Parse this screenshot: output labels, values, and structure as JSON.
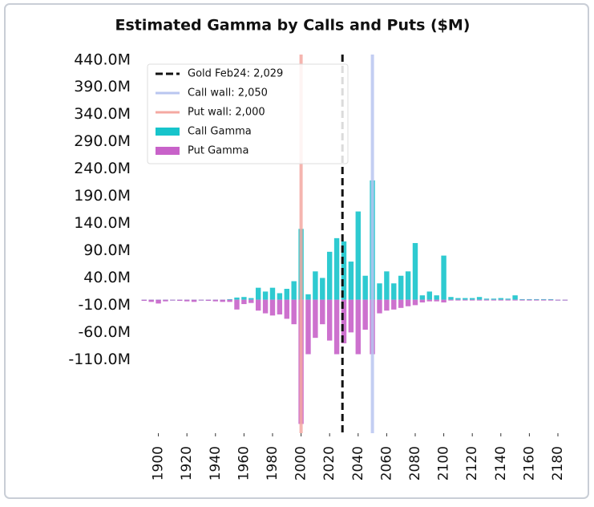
{
  "chart_data": {
    "type": "bar",
    "title": "Estimated Gamma by Calls and Puts ($M)",
    "x": [
      1890,
      1895,
      1900,
      1905,
      1910,
      1915,
      1920,
      1925,
      1930,
      1935,
      1940,
      1945,
      1950,
      1955,
      1960,
      1965,
      1970,
      1975,
      1980,
      1985,
      1990,
      1995,
      2000,
      2005,
      2010,
      2015,
      2020,
      2025,
      2030,
      2035,
      2040,
      2045,
      2050,
      2055,
      2060,
      2065,
      2070,
      2075,
      2080,
      2085,
      2090,
      2095,
      2100,
      2105,
      2110,
      2115,
      2120,
      2125,
      2130,
      2135,
      2140,
      2145,
      2150,
      2155,
      2160,
      2165,
      2170,
      2175,
      2180,
      2185
    ],
    "series": [
      {
        "name": "Call Gamma",
        "color": "#17c4cb",
        "values": [
          0,
          0,
          0,
          0,
          0,
          0,
          0,
          0,
          0,
          0,
          0,
          0,
          1,
          4,
          5,
          3,
          22,
          15,
          22,
          12,
          20,
          34,
          130,
          10,
          52,
          40,
          88,
          113,
          107,
          70,
          162,
          44,
          219,
          30,
          52,
          30,
          44,
          52,
          104,
          8,
          15,
          8,
          81,
          5,
          3,
          3,
          3,
          5,
          2,
          2,
          3,
          2,
          8,
          1,
          1,
          1,
          1,
          1,
          0,
          0
        ]
      },
      {
        "name": "Put Gamma",
        "color": "#c862c9",
        "values": [
          -2,
          -4,
          -7,
          -3,
          -1,
          -2,
          -3,
          -4,
          -1,
          -2,
          -3,
          -4,
          -4,
          -18,
          -8,
          -6,
          -20,
          -25,
          -29,
          -27,
          -35,
          -45,
          -228,
          -100,
          -70,
          -45,
          -75,
          -100,
          -80,
          -60,
          -100,
          -55,
          -100,
          -25,
          -20,
          -18,
          -15,
          -12,
          -10,
          -5,
          -3,
          -3,
          -5,
          -1,
          -1,
          -1,
          -1,
          -1,
          -1,
          -1,
          -1,
          -1,
          -1,
          -1,
          0,
          0,
          0,
          0,
          0,
          0
        ]
      }
    ],
    "vlines": [
      {
        "name": "Gold Feb24: 2,029",
        "value": 2029,
        "color": "#111111",
        "style": "dashed"
      },
      {
        "name": "Call wall: 2,050",
        "value": 2050,
        "color": "#b9c6f0",
        "style": "solid"
      },
      {
        "name": "Put wall: 2,000",
        "value": 2000,
        "color": "#f4a9a2",
        "style": "solid"
      }
    ],
    "xlim": [
      1889,
      2189
    ],
    "xticks": [
      1900,
      1920,
      1940,
      1960,
      1980,
      2000,
      2020,
      2040,
      2060,
      2080,
      2100,
      2120,
      2140,
      2160,
      2180
    ],
    "ylim": [
      -245,
      450
    ],
    "yticks": [
      {
        "value": 440,
        "label": "440.0M"
      },
      {
        "value": 390,
        "label": "390.0M"
      },
      {
        "value": 340,
        "label": "340.0M"
      },
      {
        "value": 290,
        "label": "290.0M"
      },
      {
        "value": 240,
        "label": "240.0M"
      },
      {
        "value": 190,
        "label": "190.0M"
      },
      {
        "value": 140,
        "label": "140.0M"
      },
      {
        "value": 90,
        "label": "90.0M"
      },
      {
        "value": 40,
        "label": "40.0M"
      },
      {
        "value": -10,
        "label": "-10.0M"
      },
      {
        "value": -60,
        "label": "-60.0M"
      },
      {
        "value": -110,
        "label": "-110.0M"
      }
    ],
    "legend": "upper left"
  }
}
